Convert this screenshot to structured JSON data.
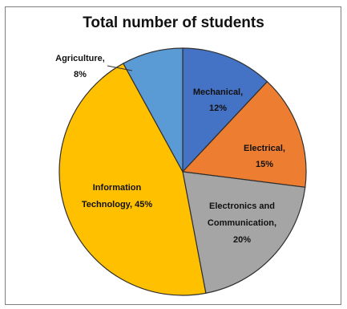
{
  "chart_data": {
    "type": "pie",
    "title": "Total number of students",
    "slices": [
      {
        "label": "Mechanical,",
        "value_label": "12%",
        "value": 12,
        "color": "#4472c4"
      },
      {
        "label": "Electrical,",
        "value_label": "15%",
        "value": 15,
        "color": "#ed7d31"
      },
      {
        "label": "Electronics and Communication,",
        "value_label": "20%",
        "value": 20,
        "color": "#a5a5a5"
      },
      {
        "label": "Information Technology,",
        "value_label": "45%",
        "value": 45,
        "color": "#ffc000"
      },
      {
        "label": "Agriculture,",
        "value_label": "8%",
        "value": 8,
        "color": "#5b9bd5"
      }
    ]
  }
}
